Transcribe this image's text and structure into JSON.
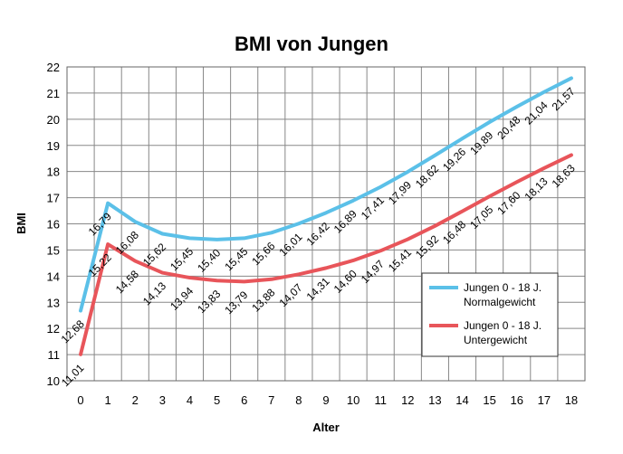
{
  "chart_data": {
    "type": "line",
    "title": "BMI von Jungen",
    "xlabel": "Alter",
    "ylabel": "BMI",
    "x": [
      0,
      1,
      2,
      3,
      4,
      5,
      6,
      7,
      8,
      9,
      10,
      11,
      12,
      13,
      14,
      15,
      16,
      17,
      18
    ],
    "ylim": [
      10,
      22
    ],
    "yticks": [
      10,
      11,
      12,
      13,
      14,
      15,
      16,
      17,
      18,
      19,
      20,
      21,
      22
    ],
    "grid": true,
    "legend_position": "right",
    "series": [
      {
        "name_line1": "Jungen 0 - 18 J.",
        "name_line2": "Normalgewicht",
        "color": "#5bc0e8",
        "values": [
          12.68,
          16.79,
          16.08,
          15.62,
          15.45,
          15.4,
          15.45,
          15.66,
          16.01,
          16.42,
          16.89,
          17.41,
          17.99,
          18.62,
          19.26,
          19.89,
          20.48,
          21.04,
          21.57
        ],
        "labels": [
          "12,68",
          "16,79",
          "16,08",
          "15,62",
          "15,45",
          "15,40",
          "15,45",
          "15,66",
          "16,01",
          "16,42",
          "16,89",
          "17,41",
          "17,99",
          "18,62",
          "19,26",
          "19,89",
          "20,48",
          "21,04",
          "21,57"
        ]
      },
      {
        "name_line1": "Jungen 0 - 18 J.",
        "name_line2": "Untergewicht",
        "color": "#e8555a",
        "values": [
          11.01,
          15.22,
          14.58,
          14.13,
          13.94,
          13.83,
          13.79,
          13.88,
          14.07,
          14.31,
          14.6,
          14.97,
          15.41,
          15.92,
          16.48,
          17.05,
          17.6,
          18.13,
          18.63
        ],
        "labels": [
          "11,01",
          "15,22",
          "14,58",
          "14,13",
          "13,94",
          "13,83",
          "13,79",
          "13,88",
          "14,07",
          "14,31",
          "14,60",
          "14,97",
          "15,41",
          "15,92",
          "16,48",
          "17,05",
          "17,60",
          "18,13",
          "18,63"
        ]
      }
    ]
  }
}
